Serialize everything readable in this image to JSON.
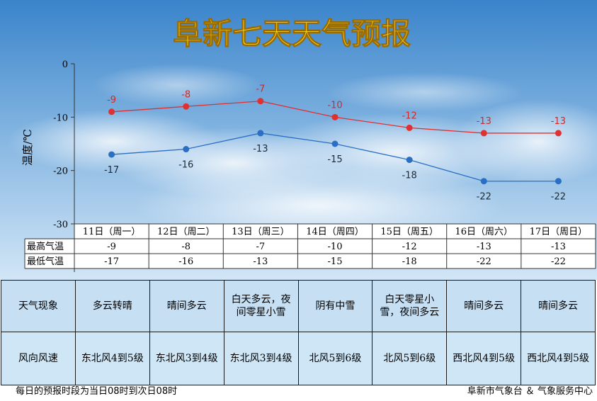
{
  "title": "阜新七天天气预报",
  "chart_data": {
    "type": "line",
    "ylabel": "温度/℃",
    "ylim": [
      -30,
      0
    ],
    "yticks": [
      0,
      -10,
      -20,
      -30
    ],
    "categories": [
      "11日（周一）",
      "12日（周二）",
      "13日（周三）",
      "14日（周四）",
      "15日（周五）",
      "16日（周六）",
      "17日（周日）"
    ],
    "series": [
      {
        "name": "最高气温",
        "color": "#e03030",
        "values": [
          -9,
          -8,
          -7,
          -10,
          -12,
          -13,
          -13
        ]
      },
      {
        "name": "最低气温",
        "color": "#2a6fc4",
        "values": [
          -17,
          -16,
          -13,
          -15,
          -18,
          -22,
          -22
        ]
      }
    ],
    "data_labels": {
      "high": [
        "-9",
        "-8",
        "-7",
        "-10",
        "-12",
        "-13",
        "-13"
      ],
      "low": [
        "-17",
        "-16",
        "-13",
        "-15",
        "-18",
        "-22",
        "-22"
      ]
    },
    "table_values": {
      "high": [
        "-9",
        "-8",
        "-7",
        "-10",
        "-12",
        "-13",
        "-13"
      ],
      "low": [
        "-17",
        "-16",
        "-13",
        "-15",
        "-18",
        "-22",
        "-22"
      ]
    },
    "grid": false,
    "legend": "data table"
  },
  "table": {
    "weather_label": "天气现象",
    "weather": [
      "多云转晴",
      "晴间多云",
      "白天多云，夜间零星小雪",
      "阴有中雪",
      "白天零星小雪，夜间多云",
      "晴间多云",
      "晴间多云"
    ],
    "wind_label": "风向风速",
    "wind": [
      "东北风4到5级",
      "东北风3到4级",
      "东北风3到4级",
      "北风5到6级",
      "北风5到6级",
      "西北风4到5级",
      "西北风4到5级"
    ]
  },
  "footer": {
    "left": "每日的预报时段为当日08时到次日08时",
    "right": "阜新市气象台 ＆ 气象服务中心"
  },
  "colors": {
    "sky_top": "#3d86cc",
    "sky_bottom": "#cfe4f5",
    "title_fill": "#f5d21a",
    "high_line": "#e03030",
    "low_line": "#2a6fc4",
    "table_bg": "#c6dff3"
  }
}
